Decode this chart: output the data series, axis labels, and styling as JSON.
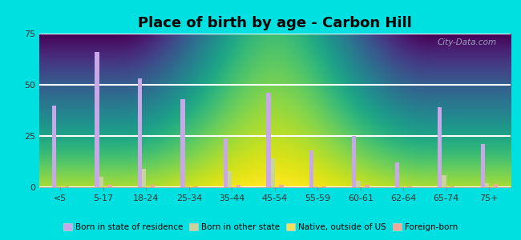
{
  "title": "Place of birth by age - Carbon Hill",
  "categories": [
    "<5",
    "5-17",
    "18-24",
    "25-34",
    "35-44",
    "45-54",
    "55-59",
    "60-61",
    "62-64",
    "65-74",
    "75+"
  ],
  "series": {
    "Born in state of residence": [
      40,
      66,
      53,
      43,
      24,
      46,
      18,
      25,
      12,
      39,
      21
    ],
    "Born in other state": [
      0.5,
      5,
      9,
      0.5,
      8,
      14,
      0.5,
      3,
      0.5,
      6,
      2
    ],
    "Native, outside of US": [
      0.5,
      0.5,
      0.5,
      0.5,
      0.5,
      0.5,
      0.5,
      0.5,
      0.5,
      0.5,
      0.5
    ],
    "Foreign-born": [
      0.5,
      1,
      1,
      0.5,
      1,
      1,
      0.5,
      1,
      0.5,
      0.5,
      1.5
    ]
  },
  "colors": {
    "Born in state of residence": "#c8a8e8",
    "Born in other state": "#c8d49c",
    "Native, outside of US": "#f0e060",
    "Foreign-born": "#f0a898"
  },
  "ylim": [
    0,
    75
  ],
  "yticks": [
    0,
    25,
    50,
    75
  ],
  "bar_width": 0.1,
  "background_color_bottom": "#c8eec8",
  "background_color_top": "#f8fff8",
  "outer_background": "#00e0e0",
  "grid_color": "#ffffff",
  "title_fontsize": 13,
  "legend_fontsize": 7.5,
  "tick_fontsize": 8,
  "watermark": "City-Data.com"
}
